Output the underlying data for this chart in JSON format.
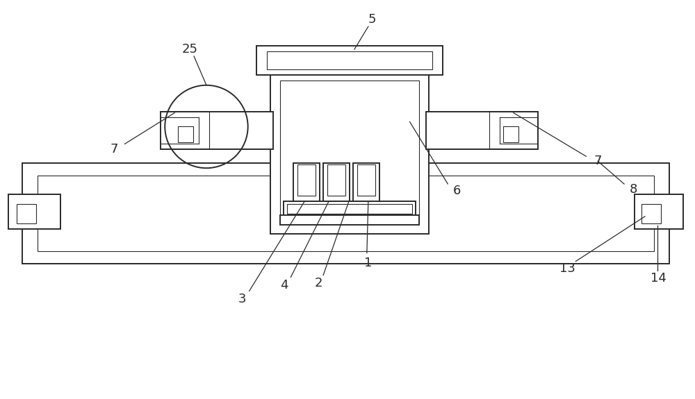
{
  "bg_color": "#ffffff",
  "line_color": "#2a2a2a",
  "lw": 1.4,
  "lw_thin": 0.8,
  "lw_med": 1.1,
  "fig_width": 10.0,
  "fig_height": 5.75
}
